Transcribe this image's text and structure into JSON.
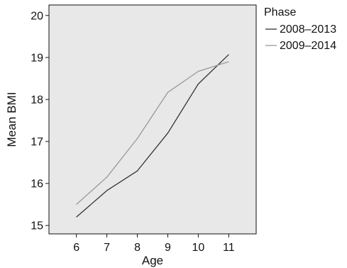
{
  "chart_data": {
    "type": "line",
    "xlabel": "Age",
    "ylabel": "Mean BMI",
    "x": [
      6,
      7,
      8,
      9,
      10,
      11
    ],
    "xticks": [
      "6",
      "7",
      "8",
      "9",
      "10",
      "11"
    ],
    "yticks": [
      "15",
      "16",
      "17",
      "18",
      "19",
      "20"
    ],
    "xlim": [
      5.1,
      11.9
    ],
    "ylim": [
      14.8,
      20.25
    ],
    "grid": false,
    "background": "#e8e8e8",
    "legend": {
      "title": "Phase",
      "placement": "right"
    },
    "series": [
      {
        "name": "2008–2013",
        "color": "#333333",
        "values": [
          15.2,
          15.83,
          16.3,
          17.2,
          18.37,
          19.07
        ]
      },
      {
        "name": "2009–2014",
        "color": "#999999",
        "values": [
          15.5,
          16.15,
          17.07,
          18.17,
          18.67,
          18.9
        ]
      }
    ]
  }
}
